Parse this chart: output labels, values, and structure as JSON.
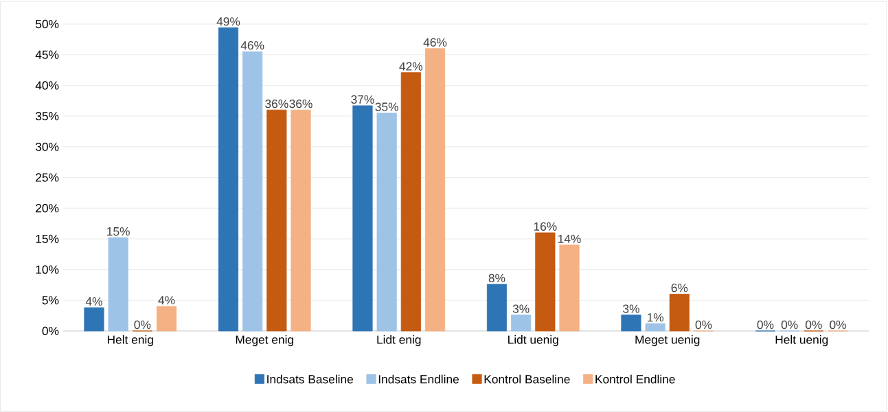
{
  "chart_data": {
    "type": "bar",
    "categories": [
      "Helt enig",
      "Meget enig",
      "Lidt enig",
      "Lidt uenig",
      "Meget uenig",
      "Helt uenig"
    ],
    "series": [
      {
        "name": "Indsats Baseline",
        "color": "#2e75b6",
        "values": [
          3.8,
          49.4,
          36.7,
          7.6,
          2.6,
          0
        ],
        "value_labels": [
          "4%",
          "49%",
          "37%",
          "8%",
          "3%",
          "0%"
        ]
      },
      {
        "name": "Indsats Endline",
        "color": "#9dc3e6",
        "values": [
          15.2,
          45.5,
          35.5,
          2.6,
          1.2,
          0
        ],
        "value_labels": [
          "15%",
          "46%",
          "35%",
          "3%",
          "1%",
          "0%"
        ]
      },
      {
        "name": "Kontrol Baseline",
        "color": "#c55a11",
        "values": [
          0,
          36.0,
          42.1,
          16.0,
          6.0,
          0
        ],
        "value_labels": [
          "0%",
          "36%",
          "42%",
          "16%",
          "6%",
          "0%"
        ]
      },
      {
        "name": "Kontrol Endline",
        "color": "#f4b183",
        "values": [
          4.0,
          36.0,
          46.0,
          14.0,
          0,
          0
        ],
        "value_labels": [
          "4%",
          "36%",
          "46%",
          "14%",
          "0%",
          "0%"
        ]
      }
    ],
    "ylim": [
      0,
      50
    ],
    "yticks": [
      {
        "value": 0,
        "label": "0%"
      },
      {
        "value": 5,
        "label": "5%"
      },
      {
        "value": 10,
        "label": "10%"
      },
      {
        "value": 15,
        "label": "15%"
      },
      {
        "value": 20,
        "label": "20%"
      },
      {
        "value": 25,
        "label": "25%"
      },
      {
        "value": 30,
        "label": "30%"
      },
      {
        "value": 35,
        "label": "35%"
      },
      {
        "value": 40,
        "label": "40%"
      },
      {
        "value": 45,
        "label": "45%"
      },
      {
        "value": 50,
        "label": "50%"
      }
    ],
    "grid": "y",
    "legend": "bottom"
  }
}
